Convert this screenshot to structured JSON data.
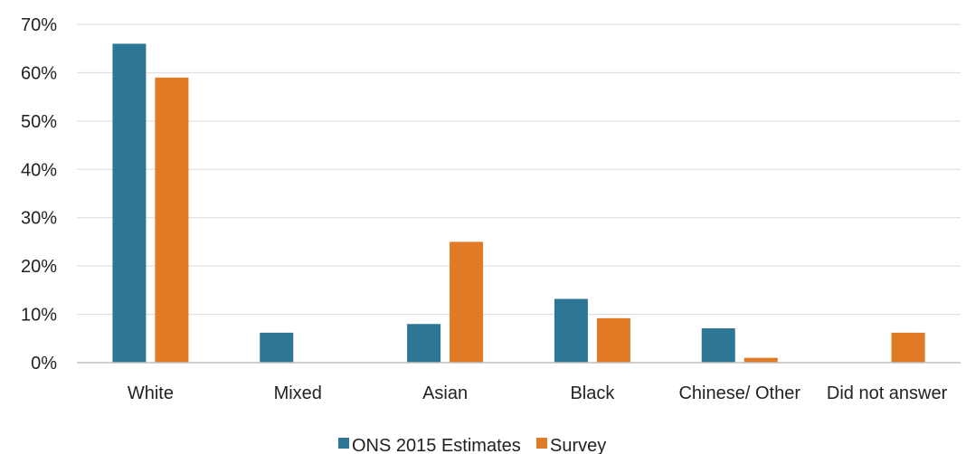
{
  "chart_data": {
    "type": "bar",
    "categories": [
      "White",
      "Mixed",
      "Asian",
      "Black",
      "Chinese/ Other",
      "Did not answer"
    ],
    "series": [
      {
        "name": "ONS 2015 Estimates",
        "color": "#2e7696",
        "values": [
          66,
          6.2,
          8,
          13.2,
          7.1,
          0
        ]
      },
      {
        "name": "Survey",
        "color": "#e07a25",
        "values": [
          59,
          0,
          25,
          9.2,
          1,
          6.2
        ]
      }
    ],
    "title": "",
    "xlabel": "",
    "ylabel": "",
    "ylim": [
      0,
      70
    ],
    "yticks": [
      0,
      10,
      20,
      30,
      40,
      50,
      60,
      70
    ],
    "ytick_labels": [
      "0%",
      "10%",
      "20%",
      "30%",
      "40%",
      "50%",
      "60%",
      "70%"
    ],
    "grid": true,
    "legend_position": "bottom-center"
  }
}
